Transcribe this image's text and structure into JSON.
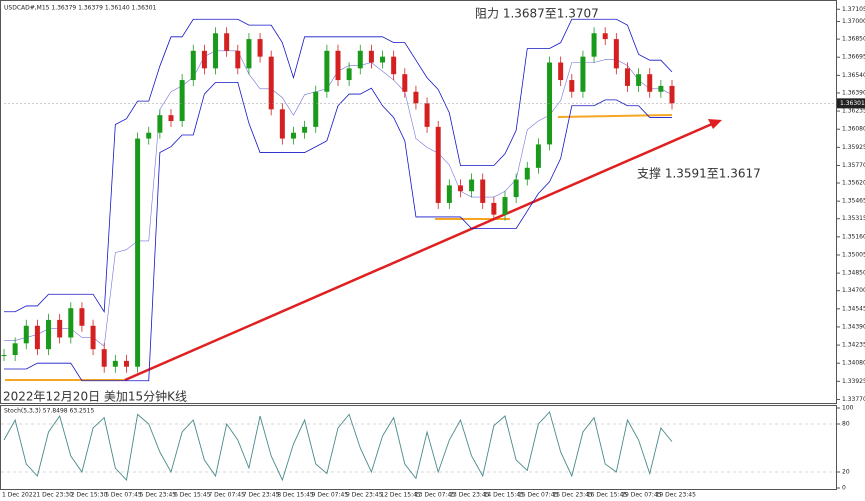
{
  "header": "USDCAD#,M15  1.36379 1.36379 1.36140 1.36301",
  "annotations": {
    "resistance": "阻力 1.3687至1.3707",
    "support": "支撑 1.3591至1.3617",
    "caption": "2022年12月20日 美加15分钟K线"
  },
  "chart_data": [
    {
      "type": "candlestick",
      "up_color": "#1a9a1a",
      "down_color": "#d42020",
      "band_color": "#1515c8",
      "values": [
        1.3415,
        1.3425,
        1.344,
        1.342,
        1.3445,
        1.343,
        1.3455,
        1.344,
        1.342,
        1.3405,
        1.341,
        1.3405,
        1.36,
        1.3605,
        1.362,
        1.3615,
        1.365,
        1.3675,
        1.366,
        1.369,
        1.3675,
        1.366,
        1.3685,
        1.367,
        1.3625,
        1.36,
        1.3605,
        1.361,
        1.364,
        1.3675,
        1.365,
        1.366,
        1.3675,
        1.3665,
        1.367,
        1.3655,
        1.364,
        1.363,
        1.361,
        1.3545,
        1.356,
        1.3555,
        1.3565,
        1.3545,
        1.3535,
        1.355,
        1.3565,
        1.3575,
        1.3595,
        1.3665,
        1.365,
        1.364,
        1.367,
        1.369,
        1.3685,
        1.366,
        1.3645,
        1.3655,
        1.364,
        1.3645,
        1.363
      ],
      "ylim": [
        1.3374,
        1.3715
      ],
      "yticks": [
        1.37105,
        {
          "value": 1.37,
          "label": "1.37000"
        },
        {
          "value": 1.3685,
          "label": "1.36850"
        },
        1.36695,
        {
          "value": 1.3654,
          "label": "1.36540"
        },
        {
          "value": 1.3639,
          "label": "1.36390"
        },
        1.36235,
        {
          "value": 1.3608,
          "label": "1.36080"
        },
        1.35925,
        {
          "value": 1.3577,
          "label": "1.35770"
        },
        {
          "value": 1.3562,
          "label": "1.35620"
        },
        1.35465,
        1.35315,
        {
          "value": 1.3516,
          "label": "1.35160"
        },
        1.35005,
        {
          "value": 1.3485,
          "label": "1.34850"
        },
        {
          "value": 1.347,
          "label": "1.34700"
        },
        1.34545,
        {
          "value": 1.3439,
          "label": "1.34390"
        },
        1.34235,
        {
          "value": 1.3408,
          "label": "1.34080"
        },
        1.33925,
        {
          "value": 1.3377,
          "label": "1.33770"
        }
      ],
      "current_price": 1.36301
    },
    {
      "type": "line",
      "title": "Stoch(5,3,3) 57.8498 63.2515",
      "color": "#4a8a8a",
      "values": [
        60,
        85,
        30,
        15,
        70,
        90,
        40,
        20,
        75,
        88,
        25,
        10,
        92,
        80,
        45,
        20,
        70,
        85,
        35,
        15,
        80,
        60,
        25,
        90,
        40,
        10,
        55,
        85,
        30,
        18,
        75,
        92,
        50,
        20,
        65,
        88,
        30,
        12,
        70,
        20,
        60,
        85,
        40,
        15,
        78,
        90,
        35,
        22,
        80,
        95,
        45,
        15,
        70,
        88,
        30,
        20,
        85,
        60,
        18,
        75,
        58
      ],
      "ylim": [
        0,
        100
      ],
      "yticks": [
        100,
        80,
        20,
        0
      ],
      "levels": [
        80,
        20
      ],
      "xtick_labels": [
        "1 Dec 2022",
        "1 Dec 23:30",
        "2 Dec 15:30",
        "5 Dec 07:45",
        "5 Dec 23:45",
        "6 Dec 15:45",
        "7 Dec 07:45",
        "7 Dec 23:45",
        "8 Dec 15:45",
        "9 Dec 07:45",
        "9 Dec 23:45",
        "12 Dec 15:45",
        "13 Dec 07:45",
        "13 Dec 23:45",
        "14 Dec 15:45",
        "15 Dec 07:45",
        "15 Dec 23:45",
        "16 Dec 15:45",
        "19 Dec 07:45",
        "19 Dec 23:45"
      ]
    }
  ]
}
